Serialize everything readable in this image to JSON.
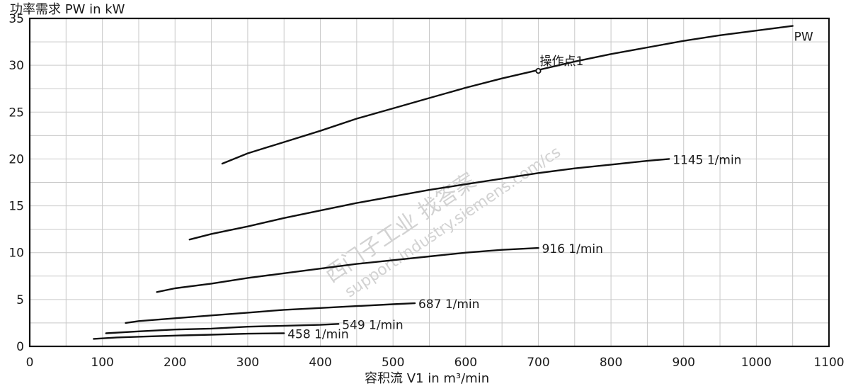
{
  "chart_data": {
    "type": "line",
    "title": "",
    "ylabel": "功率需求 PW in kW",
    "xlabel": "容积流 V1 in m³/min",
    "xlim": [
      0,
      1100
    ],
    "ylim": [
      0,
      35
    ],
    "x_ticks": [
      "0",
      "100",
      "200",
      "300",
      "400",
      "500",
      "600",
      "700",
      "800",
      "900",
      "1000",
      "1100"
    ],
    "y_ticks": [
      "0",
      "5",
      "10",
      "15",
      "20",
      "25",
      "30",
      "35"
    ],
    "grid": true,
    "series": [
      {
        "name": "PW",
        "x": [
          265,
          300,
          350,
          400,
          450,
          500,
          550,
          600,
          650,
          700,
          750,
          800,
          850,
          900,
          950,
          1000,
          1050
        ],
        "y": [
          19.5,
          20.6,
          21.8,
          23.0,
          24.3,
          25.4,
          26.5,
          27.6,
          28.6,
          29.5,
          30.4,
          31.2,
          31.9,
          32.6,
          33.2,
          33.7,
          34.2
        ]
      },
      {
        "name": "1145 1/min",
        "x": [
          220,
          250,
          300,
          350,
          400,
          450,
          500,
          550,
          600,
          650,
          700,
          750,
          800,
          850,
          880
        ],
        "y": [
          11.4,
          12.0,
          12.8,
          13.7,
          14.5,
          15.3,
          16.0,
          16.7,
          17.3,
          17.9,
          18.5,
          19.0,
          19.4,
          19.8,
          20.0
        ]
      },
      {
        "name": "916 1/min",
        "x": [
          175,
          200,
          250,
          300,
          350,
          400,
          450,
          500,
          550,
          600,
          650,
          700
        ],
        "y": [
          5.8,
          6.2,
          6.7,
          7.3,
          7.8,
          8.3,
          8.8,
          9.2,
          9.6,
          10.0,
          10.3,
          10.5
        ]
      },
      {
        "name": "687 1/min",
        "x": [
          132,
          150,
          200,
          250,
          300,
          350,
          400,
          450,
          500,
          530
        ],
        "y": [
          2.5,
          2.7,
          3.0,
          3.3,
          3.6,
          3.9,
          4.1,
          4.3,
          4.5,
          4.6
        ]
      },
      {
        "name": "549 1/min",
        "x": [
          105,
          150,
          200,
          250,
          300,
          350,
          400,
          425
        ],
        "y": [
          1.4,
          1.6,
          1.8,
          1.9,
          2.1,
          2.2,
          2.3,
          2.4
        ]
      },
      {
        "name": "458 1/min",
        "x": [
          88,
          120,
          160,
          200,
          250,
          300,
          350
        ],
        "y": [
          0.8,
          0.95,
          1.05,
          1.15,
          1.25,
          1.35,
          1.4
        ]
      }
    ],
    "annotations": [
      {
        "text": "操作点1",
        "x": 700,
        "y": 29.4
      }
    ]
  },
  "watermark": {
    "text": "西门子工业  找答案",
    "url": "support.industry.siemens.com/cs"
  }
}
